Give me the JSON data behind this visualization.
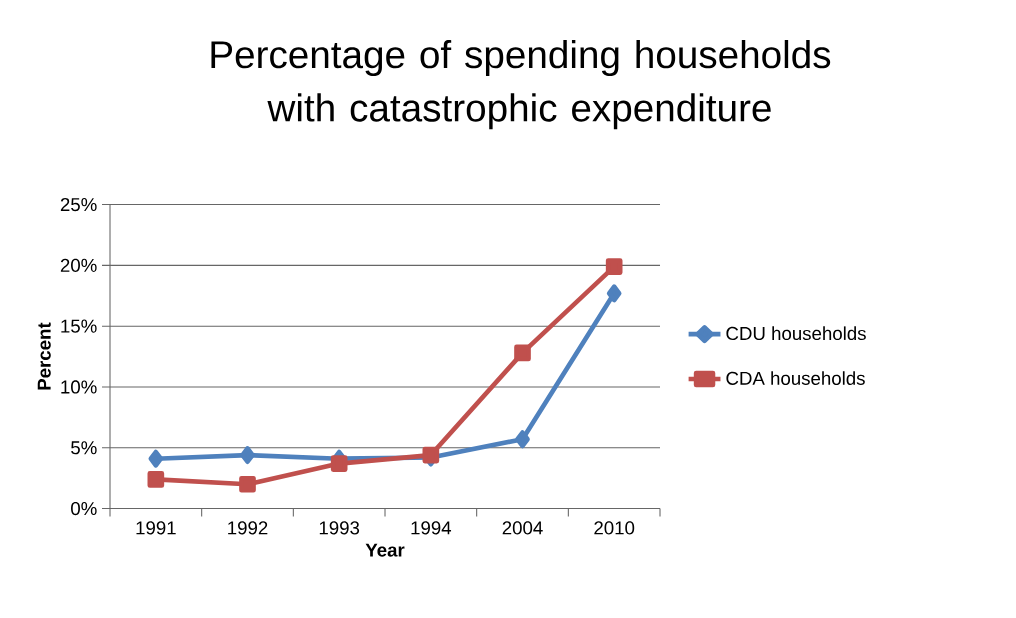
{
  "chart_data": {
    "type": "line",
    "title": "Percentage of spending households with catastrophic expenditure",
    "xlabel": "Year",
    "ylabel": "Percent",
    "categories": [
      "1991",
      "1992",
      "1993",
      "1994",
      "2004",
      "2010"
    ],
    "series": [
      {
        "name": "CDU households",
        "color": "#4f81bd",
        "marker": "diamond",
        "values": [
          4.1,
          4.4,
          4.1,
          4.2,
          5.7,
          17.7
        ]
      },
      {
        "name": "CDA households",
        "color": "#c0504d",
        "marker": "square",
        "values": [
          2.4,
          2.0,
          3.7,
          4.4,
          12.8,
          19.9
        ]
      }
    ],
    "ylim": [
      0,
      25
    ],
    "yticks": [
      {
        "value": 0,
        "label": "0%"
      },
      {
        "value": 5,
        "label": "5%"
      },
      {
        "value": 10,
        "label": "10%"
      },
      {
        "value": 15,
        "label": "15%"
      },
      {
        "value": 20,
        "label": "20%"
      },
      {
        "value": 25,
        "label": "25%"
      }
    ],
    "grid": "y",
    "legend": "right",
    "line_style": "solid"
  }
}
